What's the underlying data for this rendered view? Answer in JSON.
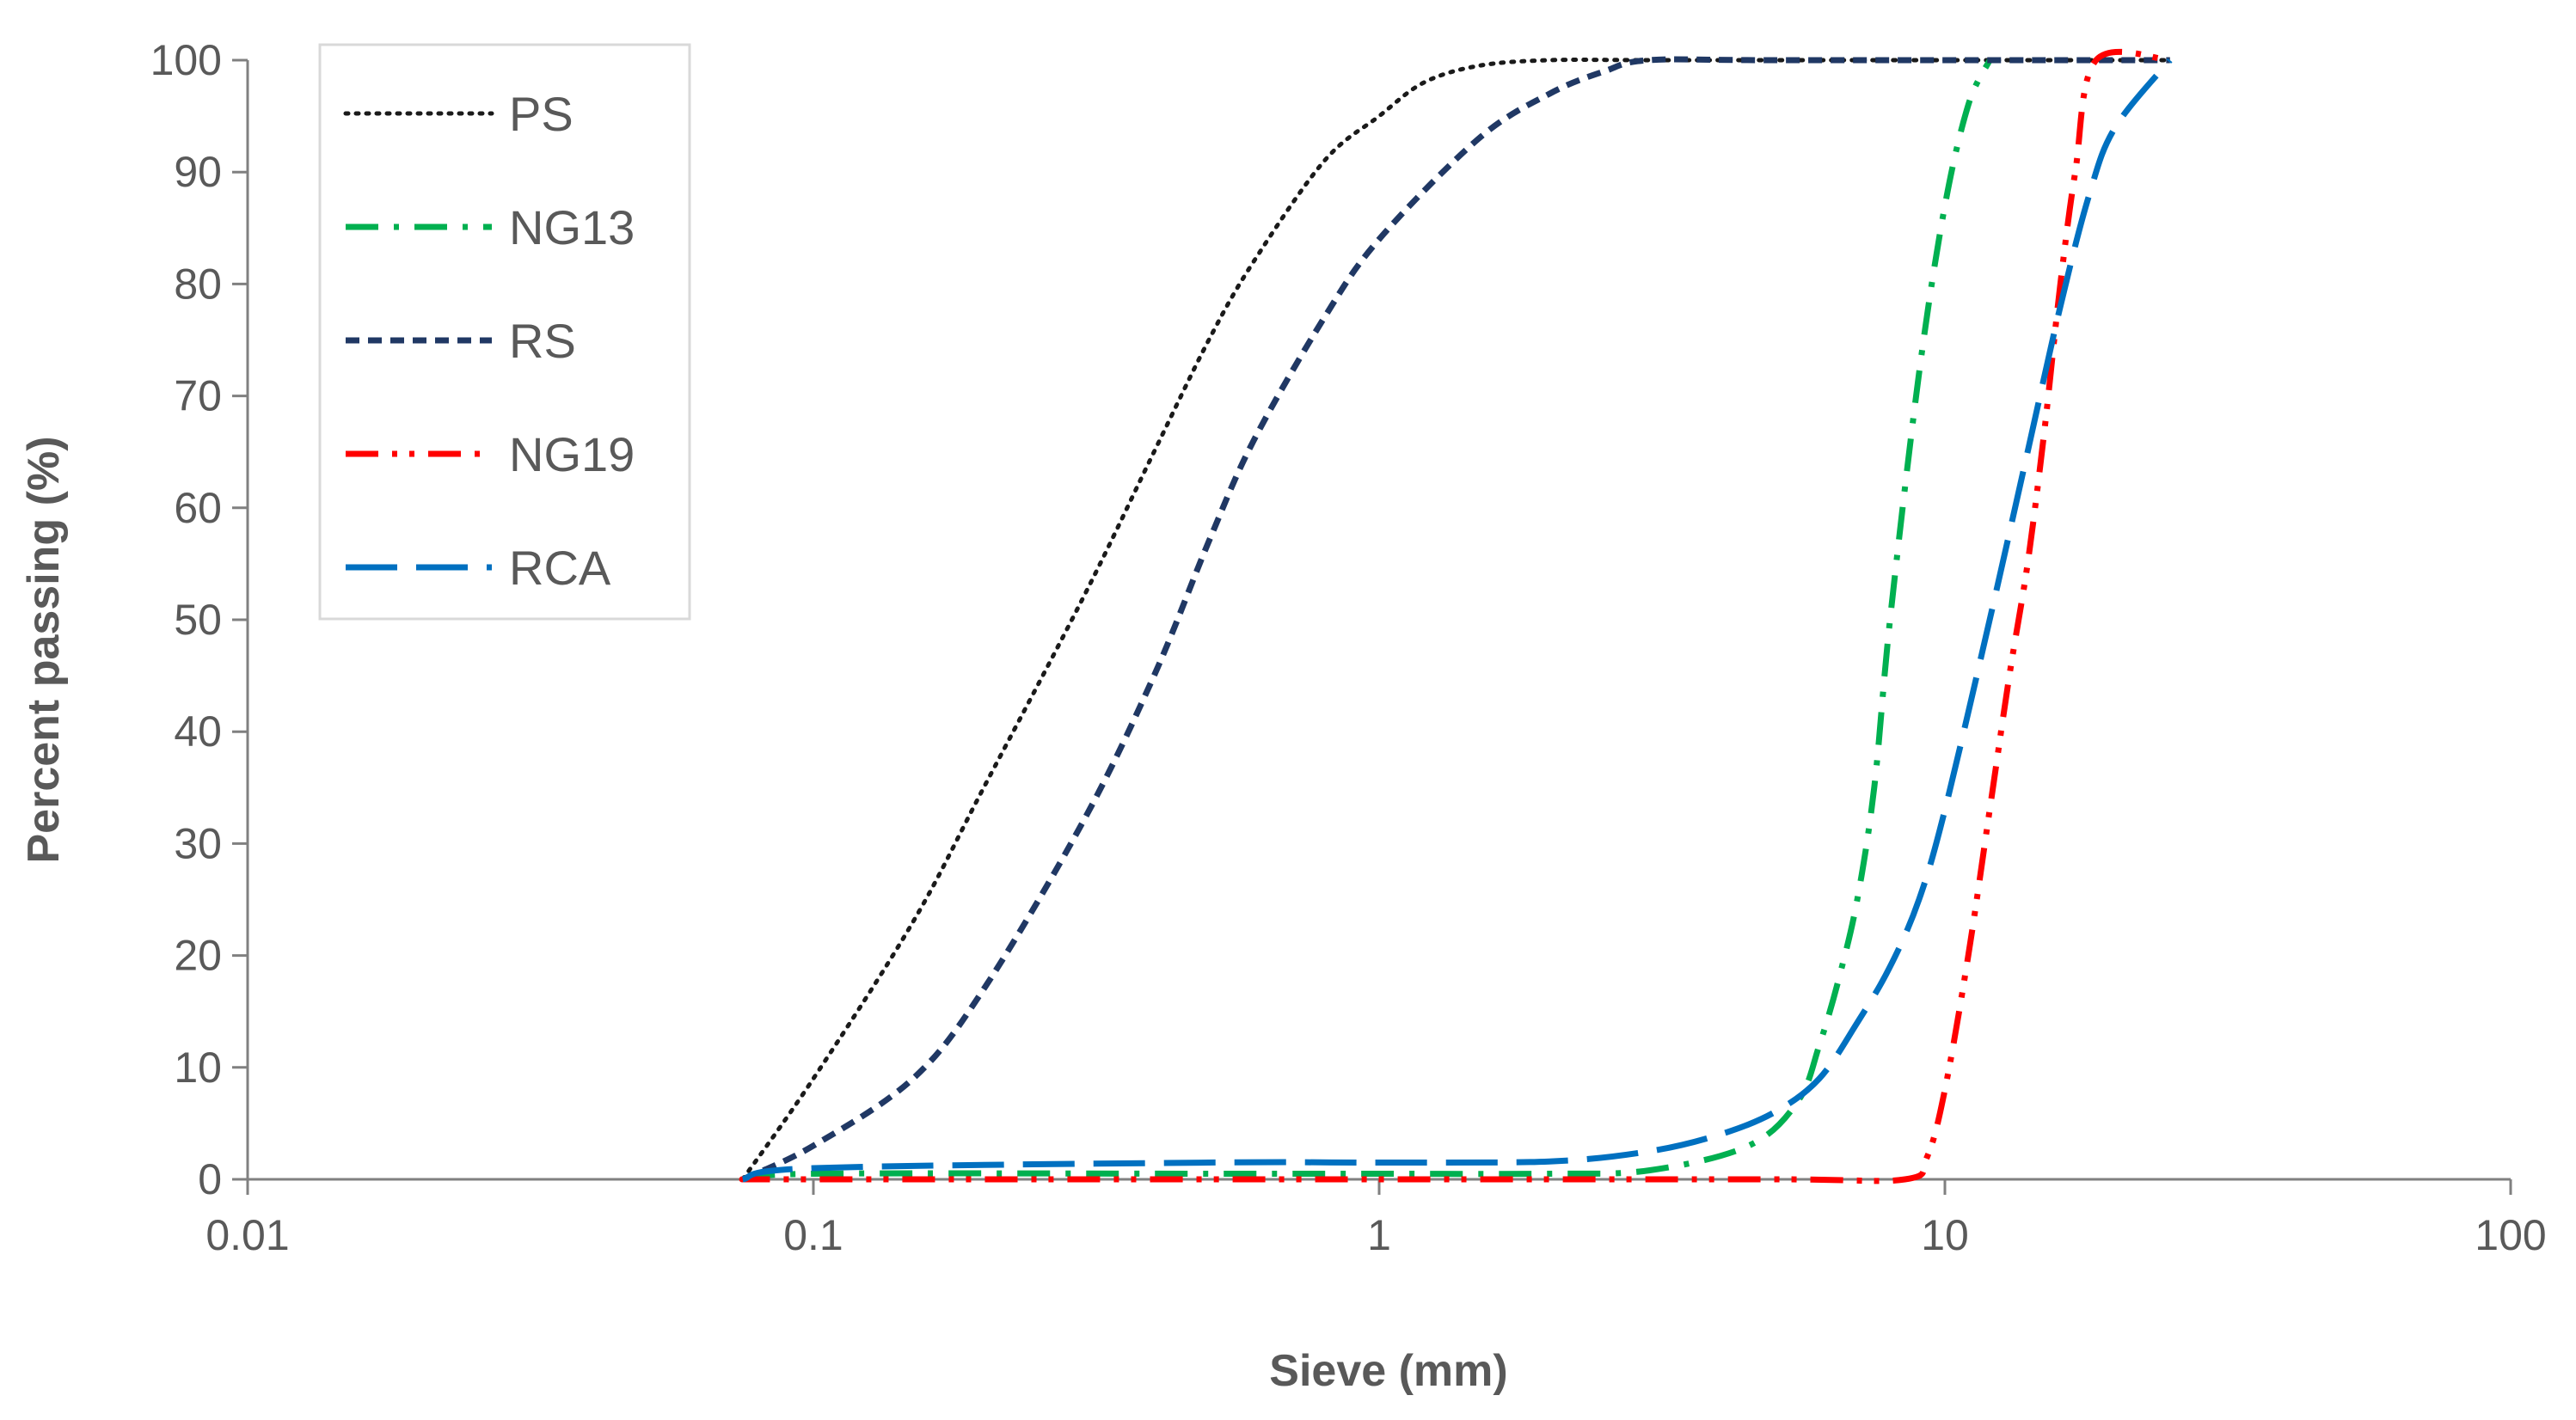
{
  "chart_data": {
    "type": "line",
    "title": "",
    "xlabel": "Sieve (mm)",
    "ylabel": "Percent passing  (%)",
    "xscale": "log",
    "xlim": [
      0.01,
      100
    ],
    "ylim": [
      0,
      100
    ],
    "xticks": [
      "0.01",
      "0.1",
      "1",
      "10",
      "100"
    ],
    "yticks": [
      "0",
      "10",
      "20",
      "30",
      "40",
      "50",
      "60",
      "70",
      "80",
      "90",
      "100"
    ],
    "grid": false,
    "legend_position": "top-left",
    "series": [
      {
        "name": "PS",
        "color": "#1a1a1a",
        "style": "dotted",
        "x": [
          0.075,
          0.1,
          0.15,
          0.2,
          0.3,
          0.4,
          0.5,
          0.6,
          0.8,
          1.0,
          1.2,
          1.5,
          2.0,
          3.0,
          5.0,
          25.0
        ],
        "y": [
          0,
          9,
          23,
          35,
          52,
          65,
          75,
          82,
          91,
          95,
          98,
          99.5,
          100,
          100,
          100,
          100
        ]
      },
      {
        "name": "NG13",
        "color": "#00b050",
        "style": "dash-dot",
        "x": [
          0.075,
          0.1,
          0.5,
          1.0,
          2.0,
          3.0,
          4.5,
          5.5,
          6.0,
          6.5,
          7.0,
          7.5,
          8.0,
          9.0,
          10.0,
          11.0,
          12.0
        ],
        "y": [
          0,
          0.5,
          0.5,
          0.5,
          0.5,
          0.8,
          3,
          7,
          12,
          18,
          25,
          35,
          50,
          72,
          87,
          96,
          100
        ]
      },
      {
        "name": "RS",
        "color": "#203864",
        "style": "short-dash",
        "x": [
          0.075,
          0.1,
          0.15,
          0.2,
          0.3,
          0.4,
          0.5,
          0.6,
          0.8,
          1.0,
          1.5,
          2.0,
          2.5,
          3.0,
          5.0,
          25.0
        ],
        "y": [
          0,
          3,
          9,
          17,
          32,
          45,
          57,
          66,
          77,
          84,
          93,
          97,
          99,
          100,
          100,
          100
        ]
      },
      {
        "name": "NG19",
        "color": "#ff0000",
        "style": "dash-dot-dot",
        "x": [
          0.075,
          0.1,
          1.0,
          5.0,
          8.5,
          9.3,
          10.0,
          11.0,
          12.0,
          13.0,
          14.0,
          15.0,
          16.0,
          17.0,
          18.5,
          25.0
        ],
        "y": [
          0,
          0,
          0,
          0,
          0,
          2,
          8,
          20,
          33,
          45,
          55,
          67,
          80,
          90,
          100,
          100
        ]
      },
      {
        "name": "RCA",
        "color": "#0070c0",
        "style": "long-dash",
        "x": [
          0.075,
          0.1,
          0.5,
          1.0,
          2.0,
          3.0,
          4.0,
          5.0,
          6.0,
          7.0,
          8.0,
          9.0,
          10.0,
          12.0,
          14.0,
          16.0,
          18.0,
          20.0,
          25.0
        ],
        "y": [
          0,
          1,
          1.5,
          1.5,
          1.6,
          2.5,
          4,
          6,
          9,
          14,
          19,
          25,
          33,
          50,
          65,
          78,
          88,
          94,
          100
        ]
      }
    ]
  }
}
